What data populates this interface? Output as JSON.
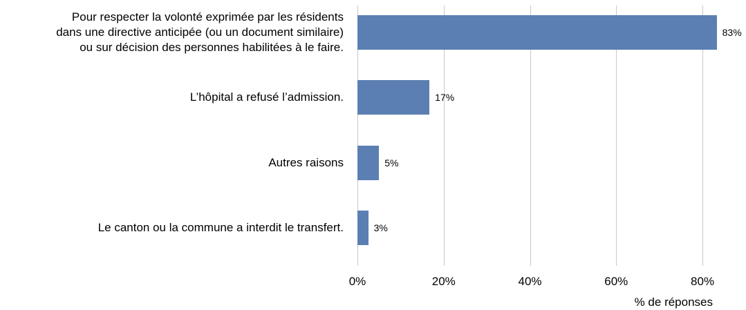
{
  "chart_data": {
    "type": "bar",
    "orientation": "horizontal",
    "categories": [
      "Pour respecter la volonté exprimée par les résidents\ndans une directive anticipée (ou un document similaire)\nou sur décision des personnes habilitées à le faire.",
      "L’hôpital a refusé l’admission.",
      "Autres raisons",
      "Le canton ou la commune a interdit le transfert."
    ],
    "values": [
      83.3,
      16.7,
      5,
      2.5
    ],
    "value_labels": [
      "83%",
      "17%",
      "5%",
      "3%"
    ],
    "color": "#5b7fb2",
    "xlabel": "% de réponses",
    "xlim": [
      0,
      84
    ],
    "xticks": [
      {
        "value": 0,
        "label": "0%"
      },
      {
        "value": 20,
        "label": "20%"
      },
      {
        "value": 40,
        "label": "40%"
      },
      {
        "value": 60,
        "label": "60%"
      },
      {
        "value": 80,
        "label": "80%"
      }
    ],
    "grid": true
  }
}
